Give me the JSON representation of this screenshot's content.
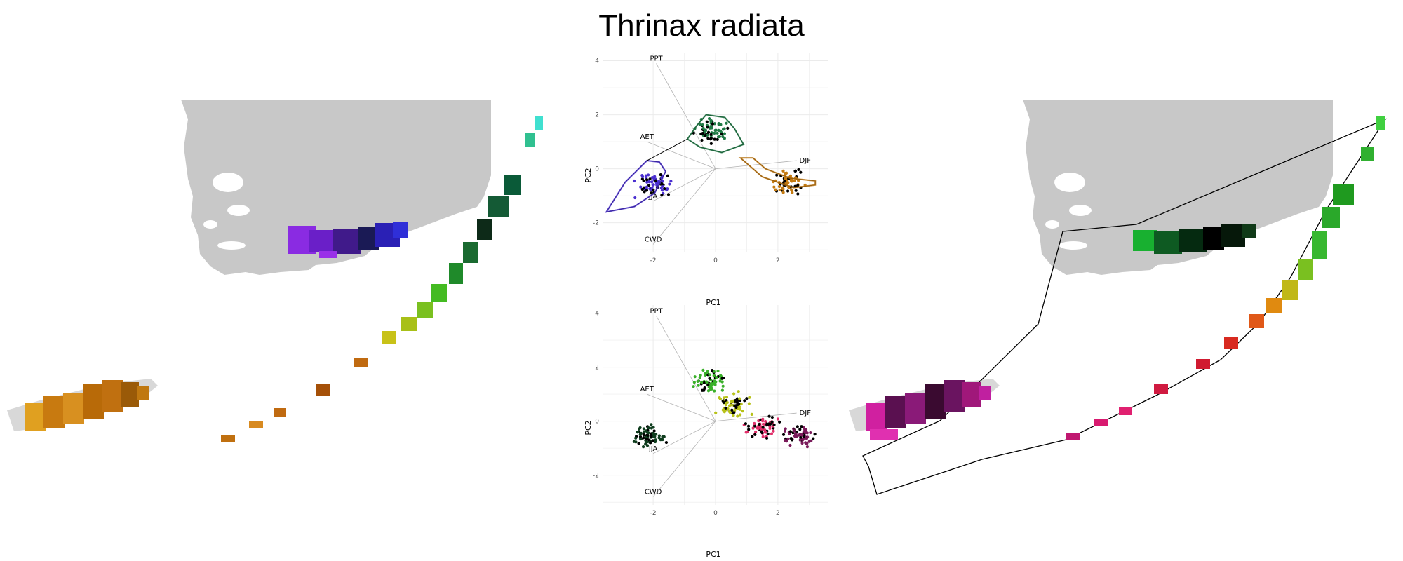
{
  "title": "Thrinax radiata",
  "colors": {
    "land": "#c8c8c8",
    "grid": "#ebebeb",
    "vector": "#b3b3b3"
  },
  "chart_data": [
    {
      "type": "scatter",
      "panel": "biplot-top",
      "xlabel": "PC1",
      "ylabel": "PC2",
      "xlim": [
        -3.6,
        3.6
      ],
      "ylim": [
        -3.1,
        4.3
      ],
      "xticks": [
        "-2",
        "0",
        "2"
      ],
      "yticks": [
        "-2",
        "0",
        "2",
        "4"
      ],
      "grid": true,
      "vectors": [
        {
          "label": "PPT",
          "x": -1.9,
          "y": 3.9
        },
        {
          "label": "AET",
          "x": -2.2,
          "y": 1.0
        },
        {
          "label": "DJF",
          "x": 2.6,
          "y": 0.3
        },
        {
          "label": "JJA",
          "x": -2.0,
          "y": -1.2
        },
        {
          "label": "CWD",
          "x": -2.0,
          "y": -2.8
        }
      ],
      "clusters": [
        {
          "center": [
            -2.0,
            -0.6
          ],
          "color": "#4a2fd0",
          "hull": [
            [
              -3.5,
              -1.6
            ],
            [
              -2.9,
              -0.5
            ],
            [
              -2.2,
              0.3
            ],
            [
              -1.8,
              0.25
            ],
            [
              -1.6,
              -0.1
            ],
            [
              -1.95,
              -0.9
            ],
            [
              -2.6,
              -1.4
            ]
          ]
        },
        {
          "center": [
            -0.1,
            1.4
          ],
          "color": "#1f7a45",
          "hull": [
            [
              -0.9,
              1.1
            ],
            [
              -0.6,
              1.6
            ],
            [
              -0.3,
              2.0
            ],
            [
              0.3,
              1.9
            ],
            [
              0.6,
              1.5
            ],
            [
              0.9,
              0.9
            ],
            [
              0.2,
              0.6
            ],
            [
              -0.5,
              0.8
            ]
          ]
        },
        {
          "center": [
            2.3,
            -0.5
          ],
          "color": "#c47a10",
          "hull": [
            [
              0.8,
              0.4
            ],
            [
              1.5,
              -0.3
            ],
            [
              2.5,
              -0.7
            ],
            [
              3.2,
              -0.6
            ],
            [
              3.2,
              -0.45
            ],
            [
              2.4,
              -0.35
            ],
            [
              1.6,
              0.0
            ],
            [
              1.2,
              0.4
            ]
          ]
        }
      ]
    },
    {
      "type": "scatter",
      "panel": "biplot-bottom",
      "xlabel": "PC1",
      "ylabel": "PC2",
      "xlim": [
        -3.6,
        3.6
      ],
      "ylim": [
        -3.1,
        4.3
      ],
      "xticks": [
        "-2",
        "0",
        "2"
      ],
      "yticks": [
        "-2",
        "0",
        "2",
        "4"
      ],
      "grid": true,
      "vectors": [
        {
          "label": "PPT",
          "x": -1.9,
          "y": 3.9
        },
        {
          "label": "AET",
          "x": -2.2,
          "y": 1.0
        },
        {
          "label": "DJF",
          "x": 2.6,
          "y": 0.3
        },
        {
          "label": "JJA",
          "x": -2.0,
          "y": -1.2
        },
        {
          "label": "CWD",
          "x": -2.0,
          "y": -2.8
        }
      ],
      "clusters": [
        {
          "center": [
            -2.2,
            -0.6
          ],
          "color": "#0f3d1e"
        },
        {
          "center": [
            -0.2,
            1.5
          ],
          "color": "#3ab02a"
        },
        {
          "center": [
            0.6,
            0.6
          ],
          "color": "#b8c21a"
        },
        {
          "center": [
            1.5,
            -0.2
          ],
          "color": "#e0306a"
        },
        {
          "center": [
            2.7,
            -0.55
          ],
          "color": "#7a1a5a"
        }
      ]
    }
  ]
}
